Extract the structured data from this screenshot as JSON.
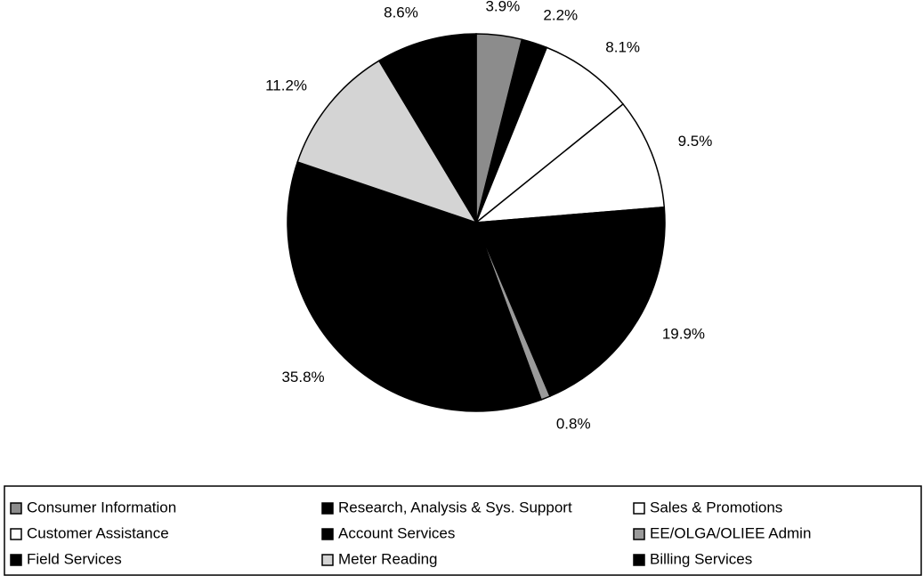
{
  "chart_data": {
    "type": "pie",
    "categories": [
      "Consumer Information",
      "Research, Analysis & Sys. Support",
      "Sales & Promotions",
      "Customer Assistance",
      "Account Services",
      "EE/OLGA/OLIEE Admin",
      "Field Services",
      "Meter Reading",
      "Billing Services"
    ],
    "values": [
      3.9,
      2.2,
      8.1,
      9.5,
      19.9,
      0.8,
      35.8,
      11.2,
      8.6
    ],
    "value_labels": [
      "3.9%",
      "2.2%",
      "8.1%",
      "9.5%",
      "19.9%",
      "0.8%",
      "35.8%",
      "11.2%",
      "8.6%"
    ],
    "colors": [
      "#8c8c8c",
      "#000000",
      "#ffffff",
      "#ffffff",
      "#000000",
      "#9a9a9a",
      "#000000",
      "#d4d4d4",
      "#000000"
    ]
  }
}
